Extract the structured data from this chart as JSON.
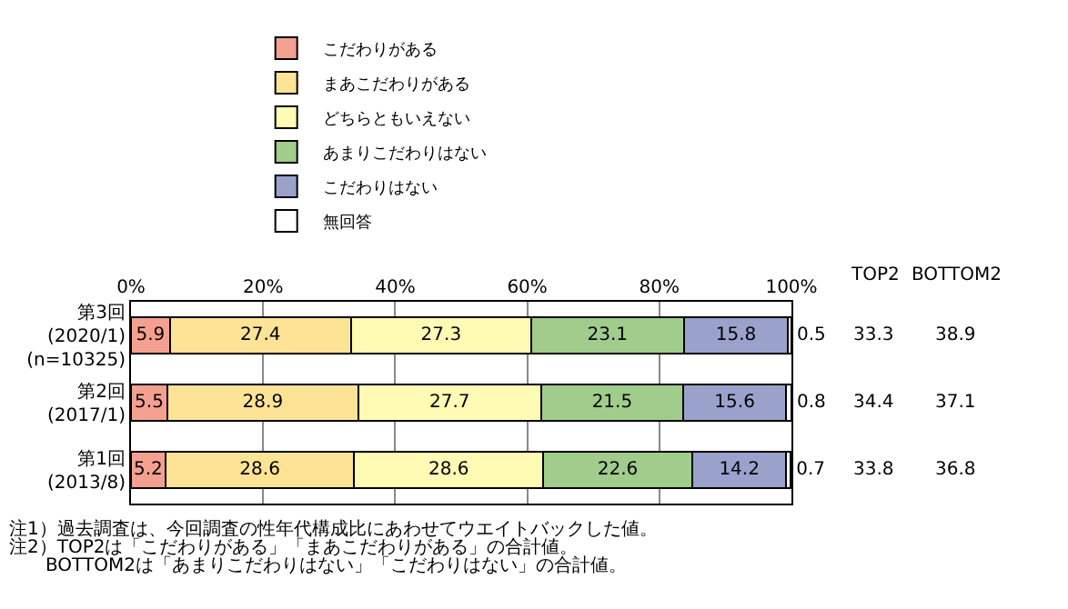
{
  "chart_data": {
    "type": "bar",
    "orientation": "horizontal",
    "stacked": true,
    "data_labels": true,
    "legend": "top",
    "grid": "x",
    "categories": [
      "第3回\n(2020/1)\n(n=10325)",
      "第2回\n(2017/1)",
      "第1回\n(2013/8)"
    ],
    "xlim": [
      0,
      100
    ],
    "xticks": [
      {
        "value": 0,
        "label": "0%"
      },
      {
        "value": 20,
        "label": "20%"
      },
      {
        "value": 40,
        "label": "40%"
      },
      {
        "value": 60,
        "label": "60%"
      },
      {
        "value": 80,
        "label": "80%"
      },
      {
        "value": 100,
        "label": "100%"
      }
    ],
    "series": [
      {
        "name": "こだわりがある",
        "color": "#f4a090",
        "values": [
          5.9,
          5.5,
          5.2
        ]
      },
      {
        "name": "まあこだわりがある",
        "color": "#fde396",
        "values": [
          27.4,
          28.9,
          28.6
        ]
      },
      {
        "name": "どちらともいえない",
        "color": "#fffab4",
        "values": [
          27.3,
          27.7,
          28.6
        ]
      },
      {
        "name": "あまりこだわりはない",
        "color": "#a0cc8c",
        "values": [
          23.1,
          21.5,
          22.6
        ]
      },
      {
        "name": "こだわりはない",
        "color": "#9aa2cc",
        "values": [
          15.8,
          15.6,
          14.2
        ]
      },
      {
        "name": "無回答",
        "color": "#ffffff",
        "values": [
          0.5,
          0.8,
          0.7
        ]
      }
    ],
    "annotations": [
      "TOP2",
      "BOTTOM2",
      "33.3",
      "38.9",
      "34.4",
      "37.1",
      "33.8",
      "36.8",
      "注1）過去調査は、今回調査の性年代構成比にあわせてウエイトバックした値。",
      "注2）TOP2は「こだわりがある」「まあこだわりがある」の合計値。",
      "　　BOTTOM2は「あまりこだわりはない」「こだわりはない」の合計値。"
    ]
  }
}
